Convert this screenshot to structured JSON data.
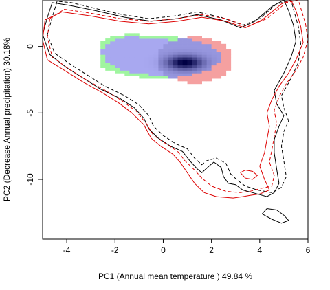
{
  "chart_data": {
    "type": "heatmap",
    "title": "",
    "xlabel": "PC1 (Annual mean temperature ) 49.84 %",
    "ylabel": "PC2 (Decrease Annual precipitation) 30.18%",
    "xlim": [
      -5,
      6
    ],
    "ylim": [
      -14.5,
      3.5
    ],
    "x_ticks": [
      "-4",
      "-2",
      "0",
      "2",
      "4",
      "6"
    ],
    "y_ticks": [
      "0",
      "-5",
      "-10"
    ],
    "grid": false,
    "legend": "none",
    "colors": {
      "niche_a_only": "#a0f5a0",
      "niche_b_only": "#f5a0a0",
      "overlap_low": "#a8a8f0",
      "overlap_high": "#000044",
      "contour_a": "#000000",
      "contour_b": "#dd0000"
    },
    "series": [
      {
        "kind": "contour",
        "color": "#000000",
        "dash": "solid",
        "points": [
          [
            -4.6,
            3.3
          ],
          [
            -4.8,
            2.2
          ],
          [
            -5.0,
            0.9
          ],
          [
            -4.7,
            -0.6
          ],
          [
            -4.0,
            -1.6
          ],
          [
            -3.3,
            -2.4
          ],
          [
            -2.6,
            -3.2
          ],
          [
            -1.8,
            -3.9
          ],
          [
            -1.2,
            -4.6
          ],
          [
            -0.8,
            -5.4
          ],
          [
            -0.6,
            -6.2
          ],
          [
            -0.2,
            -6.9
          ],
          [
            0.3,
            -7.5
          ],
          [
            0.8,
            -7.9
          ],
          [
            1.1,
            -8.6
          ],
          [
            1.4,
            -9.2
          ],
          [
            1.6,
            -9.5
          ],
          [
            1.9,
            -9.0
          ],
          [
            2.1,
            -8.7
          ],
          [
            2.4,
            -9.1
          ],
          [
            2.5,
            -9.8
          ],
          [
            2.7,
            -10.3
          ],
          [
            3.0,
            -10.4
          ],
          [
            3.3,
            -10.8
          ],
          [
            3.7,
            -11.0
          ],
          [
            4.3,
            -11.3
          ],
          [
            4.6,
            -11.0
          ],
          [
            4.8,
            -10.3
          ],
          [
            4.7,
            -9.2
          ],
          [
            4.6,
            -8.0
          ],
          [
            4.6,
            -7.0
          ],
          [
            4.8,
            -6.0
          ],
          [
            5.0,
            -5.2
          ],
          [
            4.7,
            -4.3
          ],
          [
            4.6,
            -3.3
          ],
          [
            5.0,
            -2.0
          ],
          [
            5.3,
            -0.8
          ],
          [
            5.5,
            0.4
          ],
          [
            5.4,
            1.6
          ],
          [
            5.2,
            2.7
          ],
          [
            5.0,
            3.5
          ],
          [
            4.5,
            3.0
          ],
          [
            3.8,
            1.9
          ],
          [
            3.2,
            1.4
          ],
          [
            2.4,
            2.0
          ],
          [
            1.4,
            2.4
          ],
          [
            0.6,
            2.1
          ],
          [
            -0.5,
            1.9
          ],
          [
            -1.6,
            2.2
          ],
          [
            -2.8,
            2.7
          ],
          [
            -3.9,
            3.1
          ],
          [
            -4.6,
            3.3
          ]
        ]
      },
      {
        "kind": "contour",
        "color": "#000000",
        "dash": "dashed",
        "points": [
          [
            -4.4,
            3.4
          ],
          [
            -4.6,
            2.2
          ],
          [
            -4.8,
            0.9
          ],
          [
            -4.5,
            -0.5
          ],
          [
            -3.8,
            -1.4
          ],
          [
            -3.1,
            -2.2
          ],
          [
            -2.4,
            -3.0
          ],
          [
            -1.6,
            -3.7
          ],
          [
            -1.0,
            -4.4
          ],
          [
            -0.6,
            -5.2
          ],
          [
            -0.4,
            -6.0
          ],
          [
            0.0,
            -6.7
          ],
          [
            0.5,
            -7.3
          ],
          [
            1.0,
            -7.7
          ],
          [
            1.3,
            -8.4
          ],
          [
            1.6,
            -8.9
          ],
          [
            1.8,
            -8.6
          ],
          [
            2.2,
            -8.4
          ],
          [
            2.6,
            -8.8
          ],
          [
            2.8,
            -9.6
          ],
          [
            3.1,
            -10.1
          ],
          [
            3.4,
            -10.5
          ],
          [
            3.9,
            -10.8
          ],
          [
            4.5,
            -11.0
          ],
          [
            4.9,
            -10.6
          ],
          [
            5.1,
            -9.8
          ],
          [
            5.0,
            -8.6
          ],
          [
            4.9,
            -7.5
          ],
          [
            5.0,
            -6.4
          ],
          [
            5.2,
            -5.6
          ],
          [
            5.0,
            -4.6
          ],
          [
            4.9,
            -3.7
          ],
          [
            5.3,
            -2.4
          ],
          [
            5.6,
            -1.2
          ],
          [
            5.7,
            0.2
          ],
          [
            5.6,
            1.5
          ],
          [
            5.4,
            2.8
          ],
          [
            5.3,
            3.5
          ],
          [
            4.7,
            3.2
          ],
          [
            4.0,
            2.1
          ],
          [
            3.3,
            1.6
          ],
          [
            2.4,
            2.2
          ],
          [
            1.4,
            2.6
          ],
          [
            0.5,
            2.3
          ],
          [
            -0.6,
            2.1
          ],
          [
            -1.7,
            2.4
          ],
          [
            -2.9,
            2.9
          ],
          [
            -3.8,
            3.3
          ],
          [
            -4.4,
            3.4
          ]
        ]
      },
      {
        "kind": "contour",
        "color": "#dd0000",
        "dash": "solid",
        "points": [
          [
            -4.9,
            2.0
          ],
          [
            -5.0,
            0.5
          ],
          [
            -4.8,
            -1.0
          ],
          [
            -4.0,
            -1.9
          ],
          [
            -3.3,
            -2.7
          ],
          [
            -2.5,
            -3.5
          ],
          [
            -1.8,
            -4.3
          ],
          [
            -1.3,
            -5.0
          ],
          [
            -0.8,
            -5.9
          ],
          [
            -0.5,
            -6.9
          ],
          [
            -0.1,
            -7.5
          ],
          [
            0.4,
            -8.1
          ],
          [
            0.7,
            -8.7
          ],
          [
            1.0,
            -9.5
          ],
          [
            1.3,
            -10.3
          ],
          [
            1.7,
            -11.0
          ],
          [
            2.2,
            -11.3
          ],
          [
            2.9,
            -11.4
          ],
          [
            3.3,
            -11.3
          ],
          [
            3.6,
            -11.2
          ],
          [
            4.0,
            -11.1
          ],
          [
            4.4,
            -10.8
          ],
          [
            4.2,
            -10.0
          ],
          [
            4.0,
            -9.0
          ],
          [
            4.2,
            -8.0
          ],
          [
            4.3,
            -7.0
          ],
          [
            4.4,
            -6.0
          ],
          [
            4.3,
            -5.0
          ],
          [
            4.5,
            -4.0
          ],
          [
            4.8,
            -3.0
          ],
          [
            5.2,
            -2.0
          ],
          [
            5.5,
            -1.0
          ],
          [
            5.8,
            0.3
          ],
          [
            5.7,
            1.5
          ],
          [
            5.5,
            2.7
          ],
          [
            5.3,
            3.5
          ],
          [
            4.9,
            3.2
          ],
          [
            4.1,
            2.0
          ],
          [
            3.4,
            1.4
          ],
          [
            2.6,
            1.9
          ],
          [
            1.6,
            2.2
          ],
          [
            0.6,
            1.9
          ],
          [
            -0.6,
            1.7
          ],
          [
            -1.8,
            1.9
          ],
          [
            -3.0,
            2.3
          ],
          [
            -4.2,
            2.6
          ],
          [
            -4.9,
            2.0
          ]
        ]
      },
      {
        "kind": "contour",
        "color": "#dd0000",
        "dash": "dashed",
        "points": [
          [
            -4.7,
            2.1
          ],
          [
            -4.8,
            0.7
          ],
          [
            -4.6,
            -0.8
          ],
          [
            -3.9,
            -1.7
          ],
          [
            -3.2,
            -2.5
          ],
          [
            -2.4,
            -3.3
          ],
          [
            -1.7,
            -4.1
          ],
          [
            -1.1,
            -4.9
          ],
          [
            -0.7,
            -5.8
          ],
          [
            -0.4,
            -6.7
          ],
          [
            0.1,
            -7.3
          ],
          [
            0.6,
            -7.9
          ],
          [
            0.9,
            -8.6
          ],
          [
            1.3,
            -9.3
          ],
          [
            1.6,
            -9.9
          ],
          [
            2.0,
            -10.5
          ],
          [
            2.6,
            -10.9
          ],
          [
            3.2,
            -11.0
          ],
          [
            3.6,
            -10.9
          ],
          [
            4.0,
            -10.7
          ],
          [
            4.5,
            -10.5
          ],
          [
            4.6,
            -9.7
          ],
          [
            4.4,
            -8.7
          ],
          [
            4.5,
            -7.8
          ],
          [
            4.6,
            -6.8
          ],
          [
            4.7,
            -5.8
          ],
          [
            4.6,
            -4.8
          ],
          [
            4.8,
            -3.8
          ],
          [
            5.1,
            -2.8
          ],
          [
            5.5,
            -1.8
          ],
          [
            5.8,
            -0.8
          ],
          [
            6.0,
            0.5
          ],
          [
            5.9,
            1.7
          ],
          [
            5.7,
            2.9
          ],
          [
            5.6,
            3.5
          ],
          [
            5.1,
            3.3
          ],
          [
            4.3,
            2.1
          ],
          [
            3.5,
            1.5
          ],
          [
            2.6,
            2.1
          ],
          [
            1.6,
            2.4
          ],
          [
            0.6,
            2.1
          ],
          [
            -0.6,
            1.9
          ],
          [
            -1.8,
            2.1
          ],
          [
            -3.0,
            2.5
          ],
          [
            -4.1,
            2.8
          ],
          [
            -4.7,
            2.1
          ]
        ]
      },
      {
        "kind": "contour",
        "color": "#000000",
        "dash": "solid",
        "points": [
          [
            4.1,
            -12.6
          ],
          [
            4.3,
            -12.2
          ],
          [
            4.7,
            -12.3
          ],
          [
            5.0,
            -12.7
          ],
          [
            5.2,
            -13.1
          ],
          [
            4.9,
            -13.3
          ],
          [
            4.5,
            -13.0
          ],
          [
            4.1,
            -12.6
          ]
        ]
      },
      {
        "kind": "contour",
        "color": "#dd0000",
        "dash": "solid",
        "points": [
          [
            3.2,
            -9.5
          ],
          [
            3.4,
            -9.9
          ],
          [
            3.7,
            -10.0
          ],
          [
            3.9,
            -9.7
          ],
          [
            3.7,
            -9.4
          ],
          [
            3.4,
            -9.3
          ],
          [
            3.2,
            -9.5
          ]
        ]
      }
    ]
  }
}
